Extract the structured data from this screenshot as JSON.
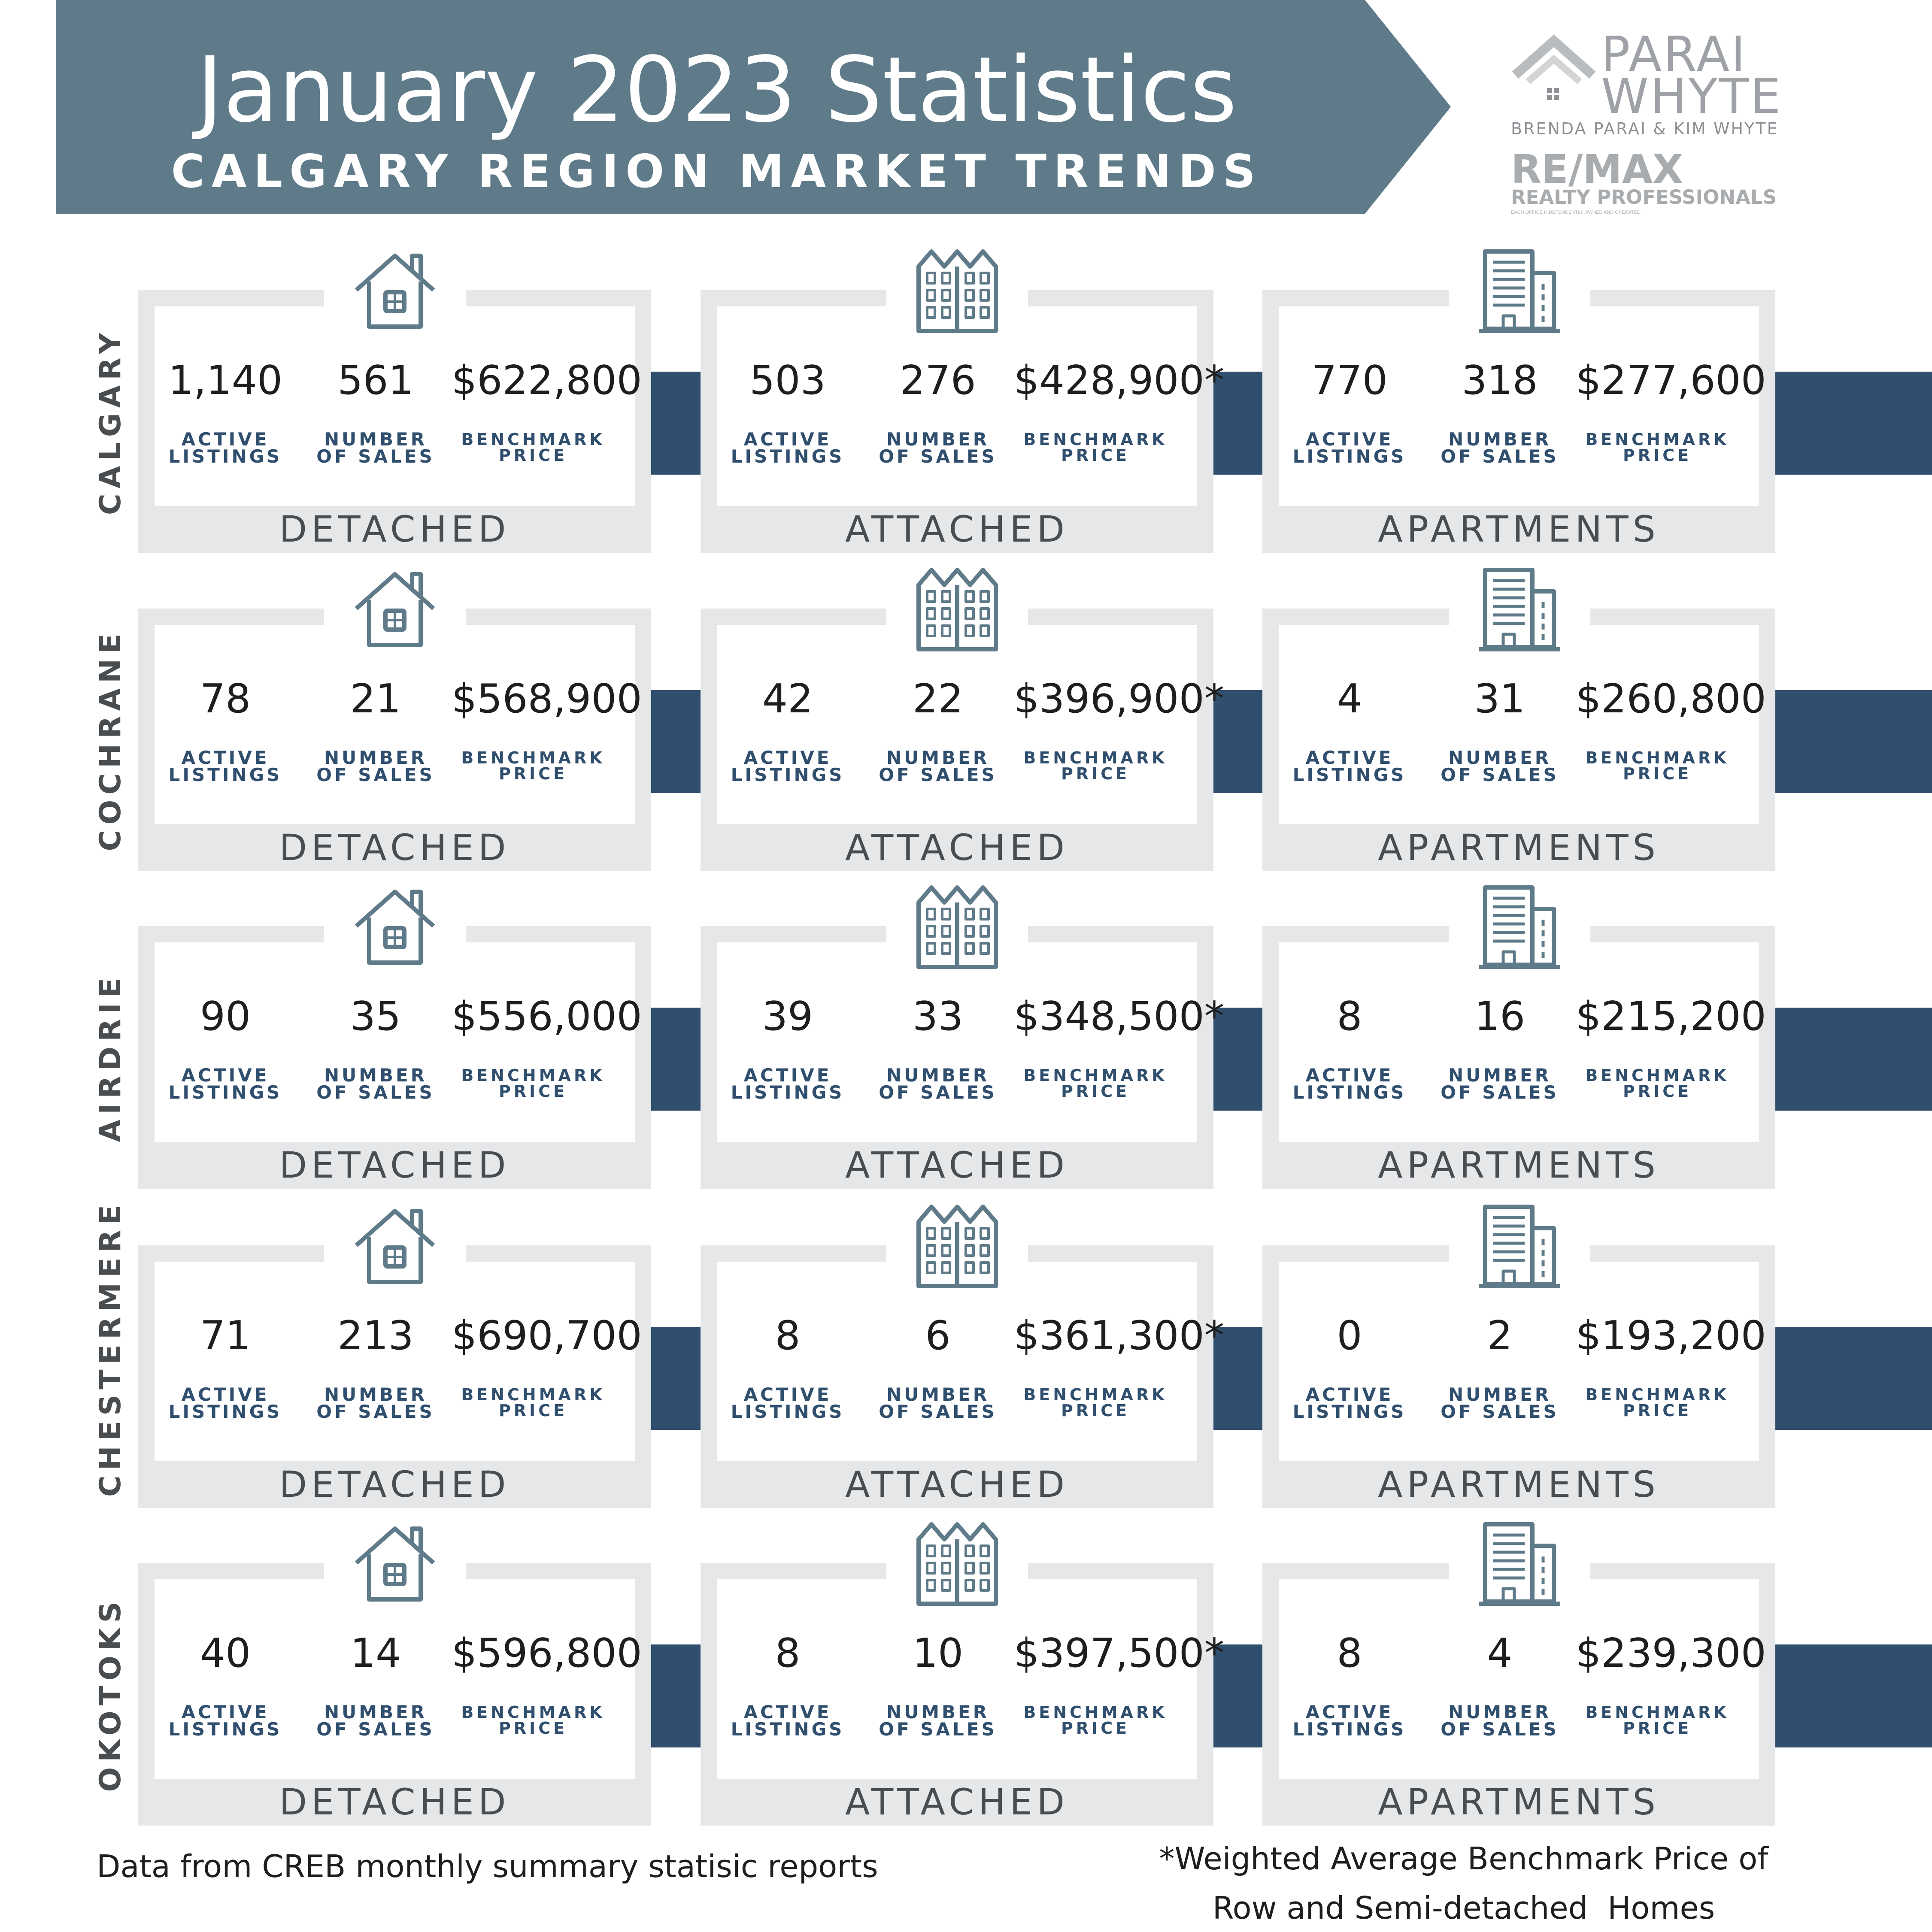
{
  "header": {
    "title": "January 2023 Statistics",
    "subtitle": "CALGARY REGION MARKET TRENDS",
    "banner_color": "#5f7b8a",
    "accent_color": "#304f6e"
  },
  "logo": {
    "name_line1": "PARAI",
    "name_line2": "WHYTE",
    "agents": "BRENDA PARAI & KIM WHYTE",
    "brand": "RE/MAX",
    "office": "REALTY PROFESSIONALS",
    "disclaimer": "EACH OFFICE INDEPENDENTLY OWNED AND OPERATED"
  },
  "labels": {
    "active_listings": "ACTIVE\nLISTINGS",
    "number_of_sales": "NUMBER\nOF SALES",
    "benchmark_price": "BENCHMARK\nPRICE"
  },
  "regions": [
    {
      "name": "CALGARY",
      "cards": [
        {
          "category": "DETACHED",
          "icon": "house-icon",
          "active_listings": "1,140",
          "number_of_sales": "561",
          "benchmark_price": "$622,800"
        },
        {
          "category": "ATTACHED",
          "icon": "townhouse-icon",
          "active_listings": "503",
          "number_of_sales": "276",
          "benchmark_price": "$428,900*"
        },
        {
          "category": "APARTMENTS",
          "icon": "apartment-building-icon",
          "active_listings": "770",
          "number_of_sales": "318",
          "benchmark_price": "$277,600"
        }
      ]
    },
    {
      "name": "COCHRANE",
      "cards": [
        {
          "category": "DETACHED",
          "icon": "house-icon",
          "active_listings": "78",
          "number_of_sales": "21",
          "benchmark_price": "$568,900"
        },
        {
          "category": "ATTACHED",
          "icon": "townhouse-icon",
          "active_listings": "42",
          "number_of_sales": "22",
          "benchmark_price": "$396,900*"
        },
        {
          "category": "APARTMENTS",
          "icon": "apartment-building-icon",
          "active_listings": "4",
          "number_of_sales": "31",
          "benchmark_price": "$260,800"
        }
      ]
    },
    {
      "name": "AIRDRIE",
      "cards": [
        {
          "category": "DETACHED",
          "icon": "house-icon",
          "active_listings": "90",
          "number_of_sales": "35",
          "benchmark_price": "$556,000"
        },
        {
          "category": "ATTACHED",
          "icon": "townhouse-icon",
          "active_listings": "39",
          "number_of_sales": "33",
          "benchmark_price": "$348,500*"
        },
        {
          "category": "APARTMENTS",
          "icon": "apartment-building-icon",
          "active_listings": "8",
          "number_of_sales": "16",
          "benchmark_price": "$215,200"
        }
      ]
    },
    {
      "name": "CHESTERMERE",
      "cards": [
        {
          "category": "DETACHED",
          "icon": "house-icon",
          "active_listings": "71",
          "number_of_sales": "213",
          "benchmark_price": "$690,700"
        },
        {
          "category": "ATTACHED",
          "icon": "townhouse-icon",
          "active_listings": "8",
          "number_of_sales": "6",
          "benchmark_price": "$361,300*"
        },
        {
          "category": "APARTMENTS",
          "icon": "apartment-building-icon",
          "active_listings": "0",
          "number_of_sales": "2",
          "benchmark_price": "$193,200"
        }
      ]
    },
    {
      "name": "OKOTOKS",
      "cards": [
        {
          "category": "DETACHED",
          "icon": "house-icon",
          "active_listings": "40",
          "number_of_sales": "14",
          "benchmark_price": "$596,800"
        },
        {
          "category": "ATTACHED",
          "icon": "townhouse-icon",
          "active_listings": "8",
          "number_of_sales": "10",
          "benchmark_price": "$397,500*"
        },
        {
          "category": "APARTMENTS",
          "icon": "apartment-building-icon",
          "active_listings": "8",
          "number_of_sales": "4",
          "benchmark_price": "$239,300"
        }
      ]
    }
  ],
  "footer": {
    "source_note": "Data from CREB monthly summary statisic reports",
    "asterisk_note_line1": "*Weighted Average Benchmark Price of",
    "asterisk_note_line2": "Row and Semi-detached  Homes"
  }
}
